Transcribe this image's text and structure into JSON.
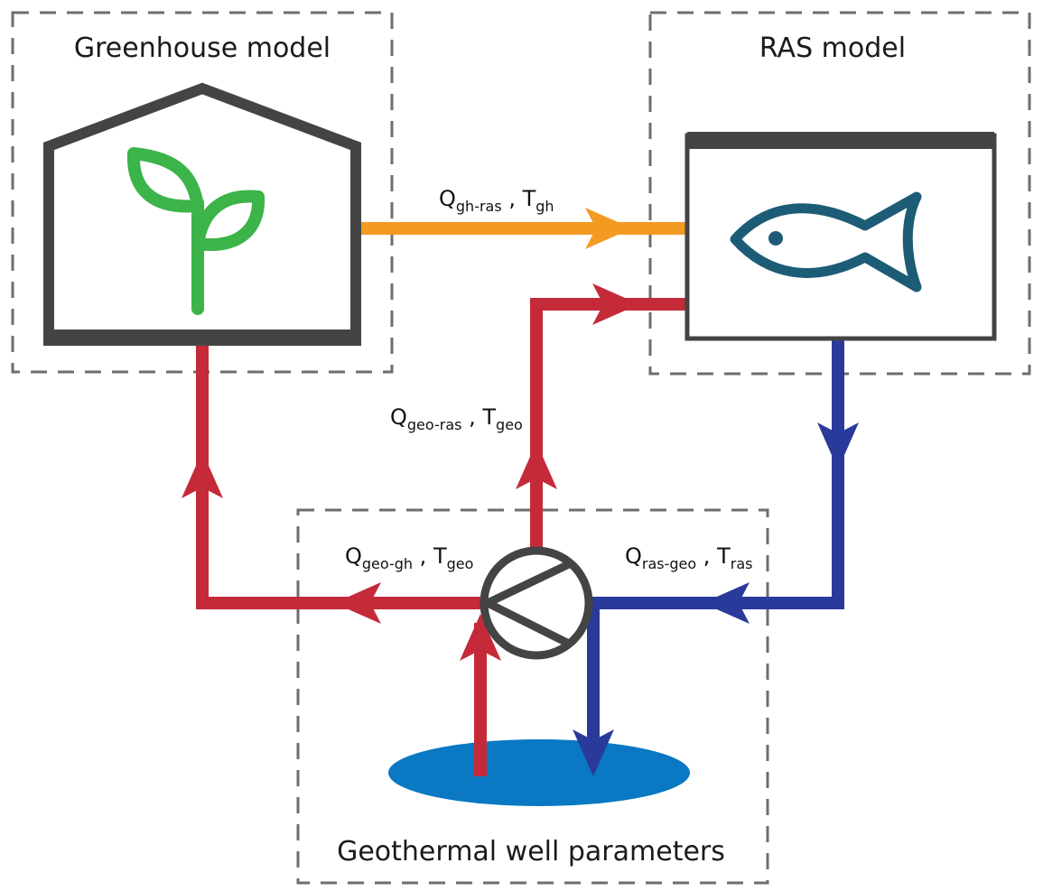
{
  "boxes": {
    "greenhouse": {
      "title": "Greenhouse model"
    },
    "ras": {
      "title": "RAS model"
    },
    "geothermal": {
      "title": "Geothermal well parameters"
    }
  },
  "flows": {
    "gh_to_ras": {
      "q": "Q",
      "q_sub": "gh-ras",
      "sep": " , ",
      "t": "T",
      "t_sub": "gh"
    },
    "geo_to_ras": {
      "q": "Q",
      "q_sub": "geo-ras",
      "sep": " , ",
      "t": "T",
      "t_sub": "geo"
    },
    "geo_to_gh": {
      "q": "Q",
      "q_sub": "geo-gh",
      "sep": " , ",
      "t": "T",
      "t_sub": "geo"
    },
    "ras_to_geo": {
      "q": "Q",
      "q_sub": "ras-geo",
      "sep": " , ",
      "t": "T",
      "t_sub": "ras"
    }
  },
  "icons": [
    "greenhouse-icon",
    "plant-icon",
    "tank-icon",
    "fish-icon",
    "pump-icon",
    "well-pool-icon"
  ],
  "colors": {
    "hot": "#c52a38",
    "cold": "#2a3a9a",
    "warm": "#f39a23",
    "plant": "#3cb44a",
    "fish": "#1d5c77",
    "frame": "#444444",
    "dash": "#6e6e6e",
    "pool": "#0a78c2"
  }
}
